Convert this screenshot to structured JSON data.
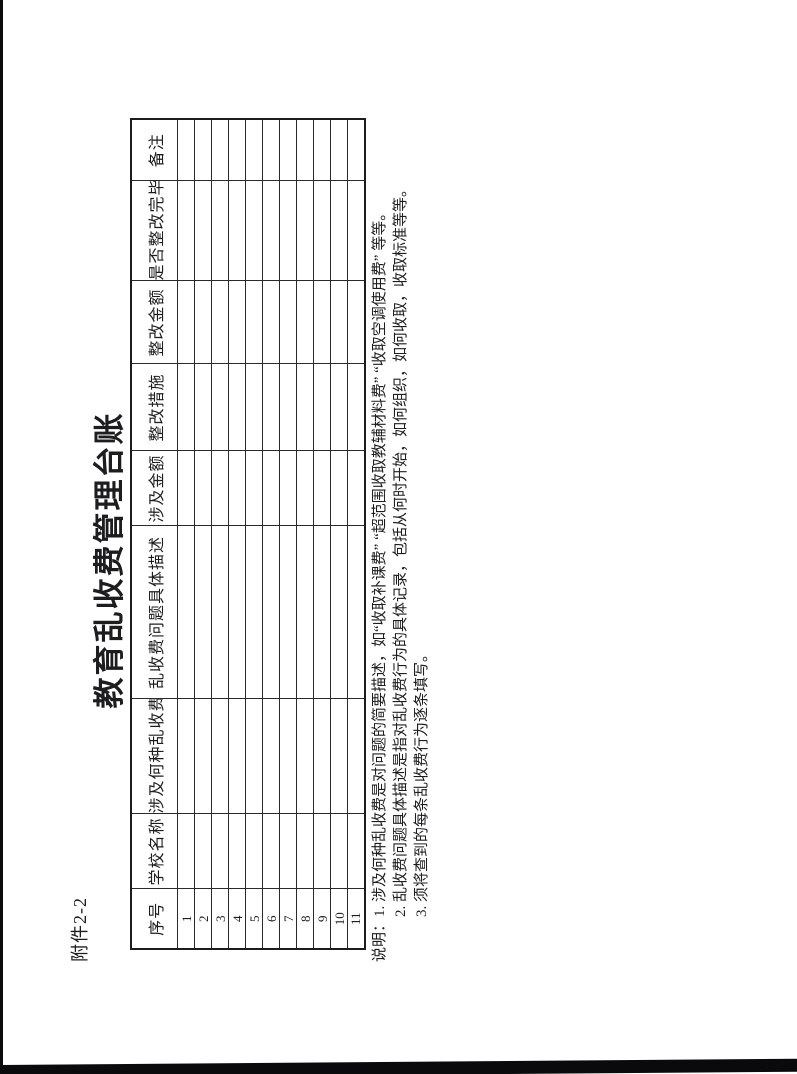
{
  "page": {
    "attachment_label": "附件2-2",
    "title": "教育乱收费管理台账"
  },
  "table": {
    "headers": [
      "序号",
      "学校名称",
      "涉及何种乱收费",
      "乱收费问题具体描述",
      "涉及金额",
      "整改措施",
      "整改金额",
      "是否整改完毕",
      "备注"
    ],
    "row_numbers": [
      "1",
      "2",
      "3",
      "4",
      "5",
      "6",
      "7",
      "8",
      "9",
      "10",
      "11"
    ],
    "empty_cell": ""
  },
  "notes": {
    "prefix": "说明：",
    "items": [
      "1. 涉及何种乱收费是对问题的简要描述，如“收取补课费” “超范围收取教辅材料费” “收取空调使用费” 等等。",
      "2. 乱收费问题具体描述是指对乱收费行为的具体记录，包括从何时开始，如何组织，如何收取，收取标准等等。",
      "3. 须将查到的每条乱收费行为逐条填写。"
    ]
  },
  "colors": {
    "page_bg": "#ffffff",
    "ink": "#1d1d1f",
    "table_line": "#2a2a2c",
    "scan_edge": "#0a0a0c"
  }
}
